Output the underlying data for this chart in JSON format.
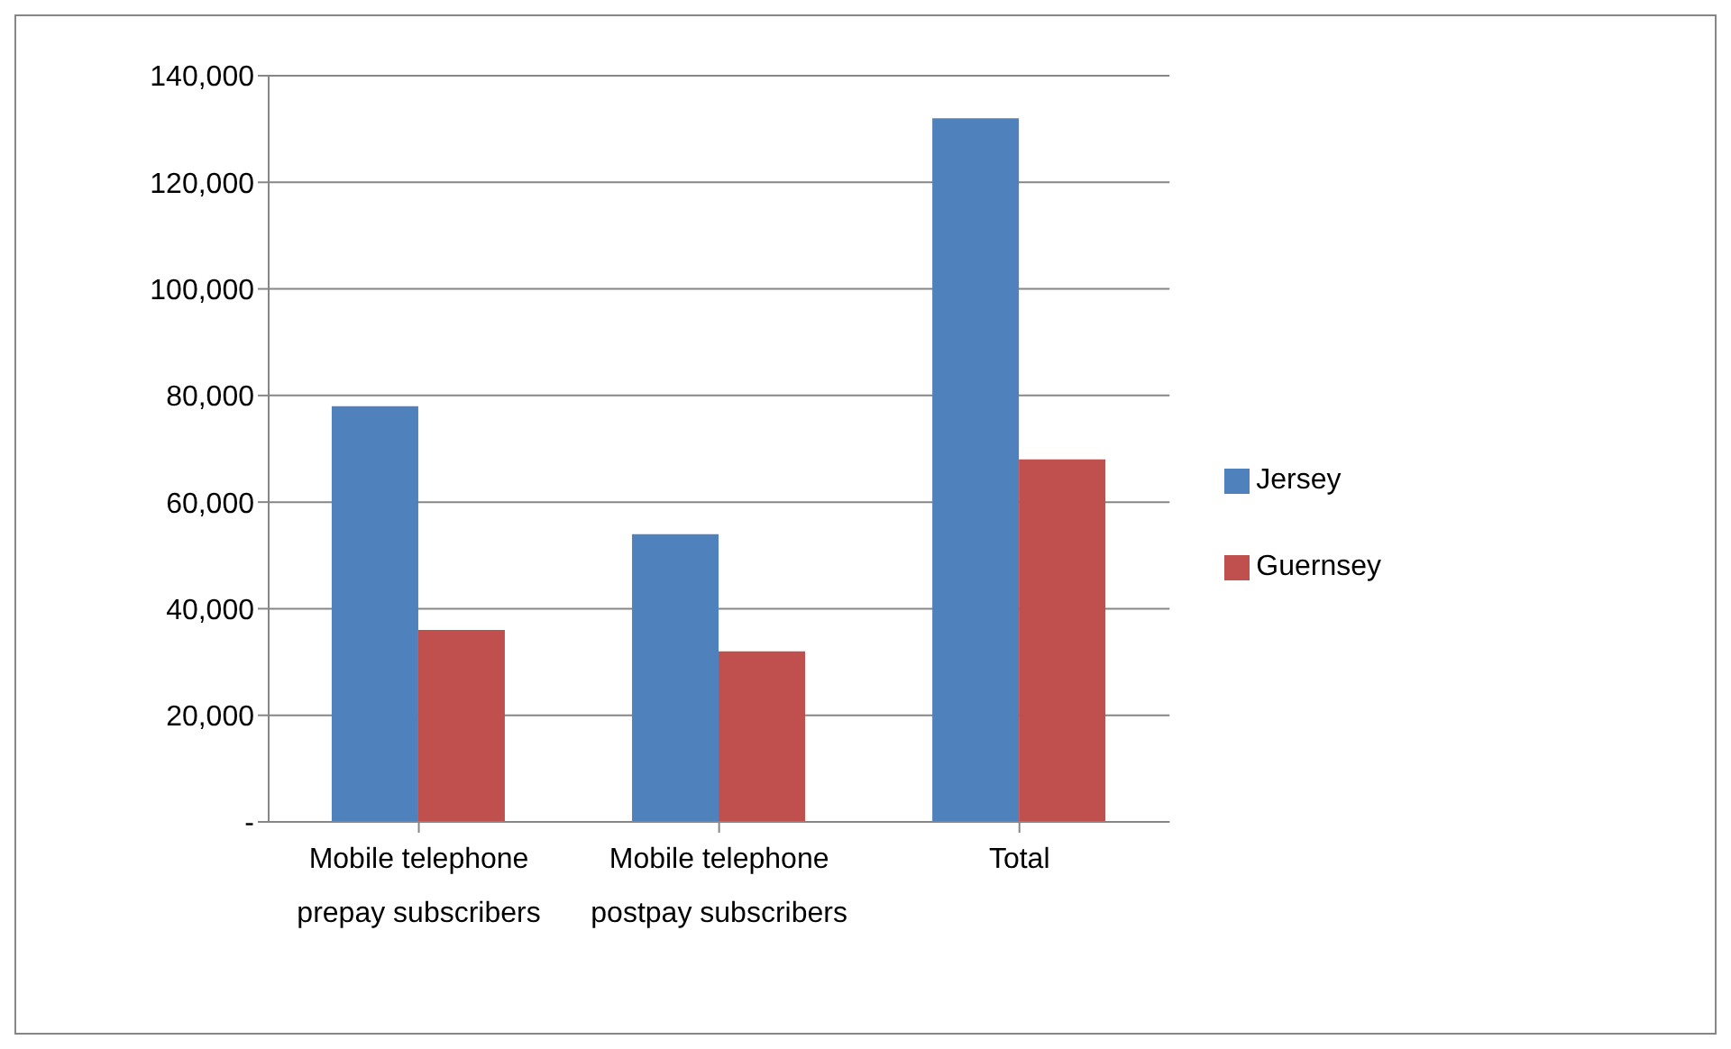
{
  "chart_data": {
    "type": "bar",
    "categories": [
      "Mobile telephone prepay subscribers",
      "Mobile telephone postpay subscribers",
      "Total"
    ],
    "series": [
      {
        "name": "Jersey",
        "color": "#4f81bd",
        "values": [
          78000,
          54000,
          132000
        ]
      },
      {
        "name": "Guernsey",
        "color": "#c0504d",
        "values": [
          36000,
          32000,
          68000
        ]
      }
    ],
    "ylim": [
      0,
      140000
    ],
    "yticks": [
      {
        "value": 0,
        "label": "-"
      },
      {
        "value": 20000,
        "label": "20,000"
      },
      {
        "value": 40000,
        "label": "40,000"
      },
      {
        "value": 60000,
        "label": "60,000"
      },
      {
        "value": 80000,
        "label": "80,000"
      },
      {
        "value": 100000,
        "label": "100,000"
      },
      {
        "value": 120000,
        "label": "120,000"
      },
      {
        "value": 140000,
        "label": "140,000"
      }
    ],
    "grid": "y",
    "legend": "right"
  }
}
